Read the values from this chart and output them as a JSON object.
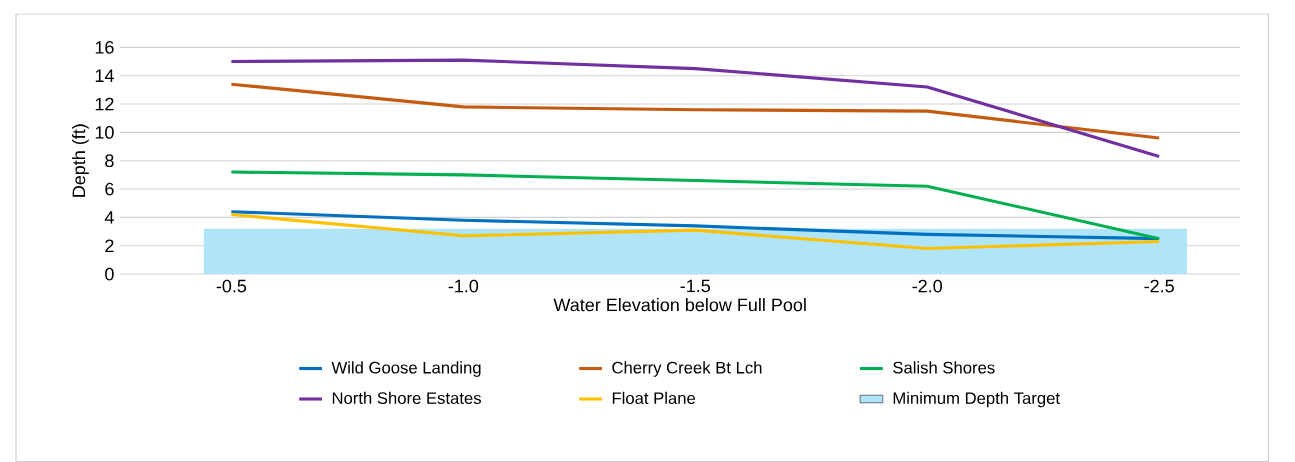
{
  "chart_data": {
    "type": "line",
    "xlabel": "Water Elevation below Full Pool",
    "ylabel": "Depth (ft)",
    "categories": [
      "-0.5",
      "-1.0",
      "-1.5",
      "-2.0",
      "-2.5"
    ],
    "series": [
      {
        "name": "Wild Goose Landing",
        "color": "#0070c0",
        "values": [
          4.4,
          3.8,
          3.4,
          2.8,
          2.5
        ]
      },
      {
        "name": "Cherry Creek Bt Lch",
        "color": "#c55a11",
        "values": [
          13.4,
          11.8,
          11.6,
          11.5,
          9.6
        ]
      },
      {
        "name": "Salish Shores",
        "color": "#00b050",
        "values": [
          7.2,
          7.0,
          6.6,
          6.2,
          2.5
        ]
      },
      {
        "name": "North Shore Estates",
        "color": "#7030a0",
        "values": [
          15.0,
          15.1,
          14.5,
          13.2,
          8.3
        ]
      },
      {
        "name": "Float Plane",
        "color": "#ffc000",
        "values": [
          4.2,
          2.7,
          3.1,
          1.8,
          2.3
        ]
      }
    ],
    "bands": [
      {
        "axis": "y",
        "from": 0,
        "to": 3.2,
        "label": "Minimum Depth Target",
        "color": "#b0e4f8"
      }
    ],
    "ylim": [
      0,
      16
    ],
    "yticks": [
      0,
      2,
      4,
      6,
      8,
      10,
      12,
      14,
      16
    ],
    "grid": "y",
    "legend": "bottom",
    "marker": "none",
    "line_style": "solid"
  }
}
